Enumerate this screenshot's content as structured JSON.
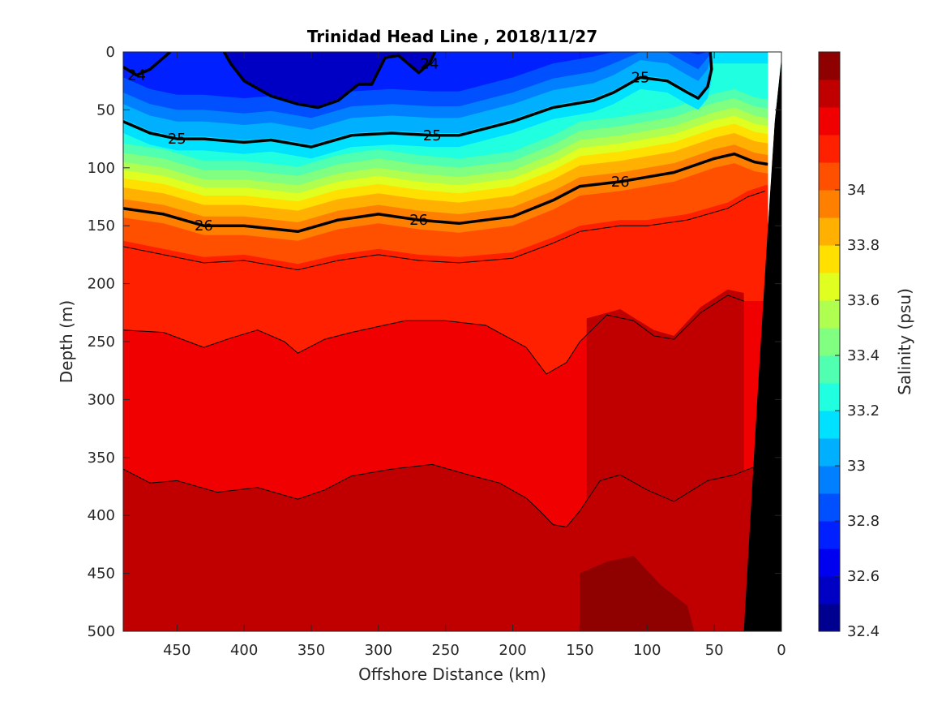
{
  "chart_data": {
    "type": "heatmap",
    "title": "Trinidad Head Line , 2018/11/27",
    "xlabel": "Offshore Distance (km)",
    "ylabel": "Depth (m)",
    "xlim": [
      490,
      0
    ],
    "ylim": [
      0,
      500
    ],
    "x_reversed": true,
    "y_reversed": true,
    "x_ticks": [
      450,
      400,
      350,
      300,
      250,
      200,
      150,
      100,
      50,
      0
    ],
    "y_ticks": [
      0,
      50,
      100,
      150,
      200,
      250,
      300,
      350,
      400,
      450,
      500
    ],
    "colorbar": {
      "label": "Salinity (psu)",
      "range": [
        32.4,
        34.5
      ],
      "tick_values": [
        32.4,
        32.6,
        32.8,
        33,
        33.2,
        33.4,
        33.6,
        33.8,
        34
      ],
      "tick_labels": [
        "32.4",
        "32.6",
        "32.8",
        "33",
        "33.2",
        "33.4",
        "33.6",
        "33.8",
        "34"
      ],
      "levels": [
        32.4,
        32.5,
        32.6,
        32.7,
        32.8,
        32.9,
        33.0,
        33.1,
        33.2,
        33.3,
        33.4,
        33.5,
        33.6,
        33.7,
        33.8,
        33.9,
        34.0,
        34.1,
        34.2,
        34.3,
        34.4,
        34.5
      ],
      "colors": [
        "#000090",
        "#0000c4",
        "#0000f0",
        "#0020ff",
        "#0050ff",
        "#0080ff",
        "#00b0ff",
        "#00e0ff",
        "#20ffdf",
        "#50ffaf",
        "#80ff80",
        "#b0ff50",
        "#e0ff20",
        "#ffe000",
        "#ffb000",
        "#ff8000",
        "#ff5000",
        "#ff2000",
        "#f00000",
        "#c00000",
        "#8f0000"
      ]
    },
    "salinity_bands": [
      {
        "color": "#0000c4",
        "profile": [
          [
            490,
            0
          ],
          [
            0,
            0
          ],
          [
            0,
            5
          ],
          [
            490,
            5
          ]
        ]
      },
      {
        "color": "#0020ff",
        "profile": [
          [
            490,
            5
          ],
          [
            0,
            5
          ],
          [
            0,
            40
          ],
          [
            490,
            40
          ]
        ]
      },
      {
        "color": "#0050ff",
        "profile": [
          [
            490,
            40
          ],
          [
            0,
            40
          ],
          [
            0,
            55
          ],
          [
            490,
            55
          ]
        ]
      },
      {
        "color": "#0080ff",
        "profile": [
          [
            490,
            55
          ],
          [
            0,
            55
          ],
          [
            0,
            70
          ],
          [
            490,
            70
          ]
        ]
      },
      {
        "color": "#00b0ff",
        "profile": [
          [
            490,
            70
          ],
          [
            0,
            70
          ],
          [
            0,
            85
          ],
          [
            490,
            85
          ]
        ]
      }
    ],
    "isopycnals": [
      {
        "value": 24,
        "label": "24",
        "bold": true,
        "points": [
          [
            490,
            13
          ],
          [
            480,
            20
          ],
          [
            470,
            15
          ],
          [
            460,
            5
          ],
          [
            455,
            0
          ]
        ]
      },
      {
        "value": 24,
        "label": "24",
        "bold": true,
        "points": [
          [
            415,
            0
          ],
          [
            410,
            10
          ],
          [
            400,
            25
          ],
          [
            380,
            38
          ],
          [
            360,
            45
          ],
          [
            345,
            48
          ],
          [
            330,
            42
          ],
          [
            315,
            28
          ],
          [
            305,
            28
          ],
          [
            295,
            5
          ],
          [
            285,
            3
          ],
          [
            270,
            18
          ],
          [
            262,
            10
          ],
          [
            258,
            0
          ]
        ]
      },
      {
        "value": 25,
        "label": "25",
        "bold": true,
        "points": [
          [
            490,
            60
          ],
          [
            470,
            70
          ],
          [
            450,
            75
          ],
          [
            430,
            75
          ],
          [
            400,
            78
          ],
          [
            380,
            76
          ],
          [
            350,
            82
          ],
          [
            320,
            72
          ],
          [
            290,
            70
          ],
          [
            260,
            72
          ],
          [
            240,
            72
          ],
          [
            200,
            60
          ],
          [
            170,
            48
          ],
          [
            140,
            42
          ],
          [
            125,
            35
          ],
          [
            105,
            22
          ],
          [
            85,
            25
          ],
          [
            70,
            35
          ],
          [
            62,
            40
          ],
          [
            55,
            30
          ],
          [
            52,
            15
          ],
          [
            53,
            0
          ]
        ]
      },
      {
        "value": 26,
        "label": "26",
        "bold": true,
        "points": [
          [
            490,
            135
          ],
          [
            460,
            140
          ],
          [
            430,
            150
          ],
          [
            400,
            150
          ],
          [
            360,
            155
          ],
          [
            330,
            145
          ],
          [
            300,
            140
          ],
          [
            270,
            145
          ],
          [
            240,
            148
          ],
          [
            200,
            142
          ],
          [
            170,
            128
          ],
          [
            150,
            116
          ],
          [
            120,
            112
          ],
          [
            100,
            108
          ],
          [
            80,
            104
          ],
          [
            50,
            92
          ],
          [
            35,
            88
          ],
          [
            20,
            95
          ],
          [
            10,
            97
          ]
        ]
      },
      {
        "value": 26.2,
        "label": "",
        "bold": false,
        "points": [
          [
            490,
            168
          ],
          [
            460,
            175
          ],
          [
            430,
            182
          ],
          [
            400,
            180
          ],
          [
            360,
            188
          ],
          [
            330,
            180
          ],
          [
            300,
            175
          ],
          [
            270,
            180
          ],
          [
            240,
            182
          ],
          [
            200,
            178
          ],
          [
            170,
            165
          ],
          [
            150,
            155
          ],
          [
            120,
            150
          ],
          [
            100,
            150
          ],
          [
            70,
            145
          ],
          [
            40,
            135
          ],
          [
            25,
            125
          ],
          [
            12,
            120
          ]
        ]
      },
      {
        "value": 26.4,
        "label": "",
        "bold": false,
        "points": [
          [
            490,
            240
          ],
          [
            460,
            242
          ],
          [
            430,
            255
          ],
          [
            410,
            247
          ],
          [
            390,
            240
          ],
          [
            370,
            250
          ],
          [
            360,
            260
          ],
          [
            340,
            248
          ],
          [
            320,
            242
          ],
          [
            300,
            237
          ],
          [
            280,
            232
          ],
          [
            250,
            232
          ],
          [
            220,
            236
          ],
          [
            190,
            255
          ],
          [
            175,
            278
          ],
          [
            160,
            268
          ],
          [
            150,
            250
          ],
          [
            130,
            227
          ],
          [
            110,
            232
          ],
          [
            95,
            245
          ],
          [
            80,
            248
          ],
          [
            60,
            225
          ],
          [
            40,
            210
          ],
          [
            28,
            215
          ]
        ]
      },
      {
        "value": 26.6,
        "label": "",
        "bold": false,
        "points": [
          [
            490,
            360
          ],
          [
            470,
            372
          ],
          [
            450,
            370
          ],
          [
            420,
            380
          ],
          [
            390,
            376
          ],
          [
            360,
            386
          ],
          [
            340,
            378
          ],
          [
            320,
            366
          ],
          [
            290,
            360
          ],
          [
            260,
            356
          ],
          [
            230,
            366
          ],
          [
            210,
            372
          ],
          [
            190,
            385
          ],
          [
            180,
            396
          ],
          [
            170,
            408
          ],
          [
            160,
            410
          ],
          [
            150,
            396
          ],
          [
            135,
            370
          ],
          [
            120,
            365
          ],
          [
            100,
            378
          ],
          [
            80,
            388
          ],
          [
            55,
            370
          ],
          [
            35,
            365
          ],
          [
            20,
            358
          ],
          [
            8,
            355
          ]
        ]
      }
    ]
  }
}
